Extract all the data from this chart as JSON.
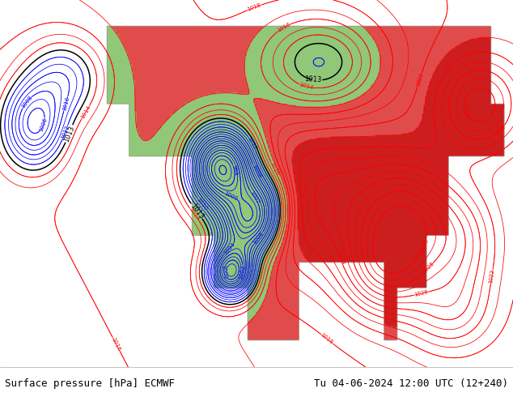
{
  "title_left": "Surface pressure [hPa] ECMWF",
  "title_right": "Tu 04-06-2024 12:00 UTC (12+240)",
  "fig_width": 6.34,
  "fig_height": 4.9,
  "dpi": 100,
  "footer_bg": "#ffffff",
  "footer_text_color": "#000000",
  "footer_font_size": 9,
  "map_bg_ocean": "#d8d8d8",
  "map_bg_land": "#90c878",
  "contour_blue": "#0000ff",
  "contour_red": "#ff0000",
  "contour_black": "#000000"
}
